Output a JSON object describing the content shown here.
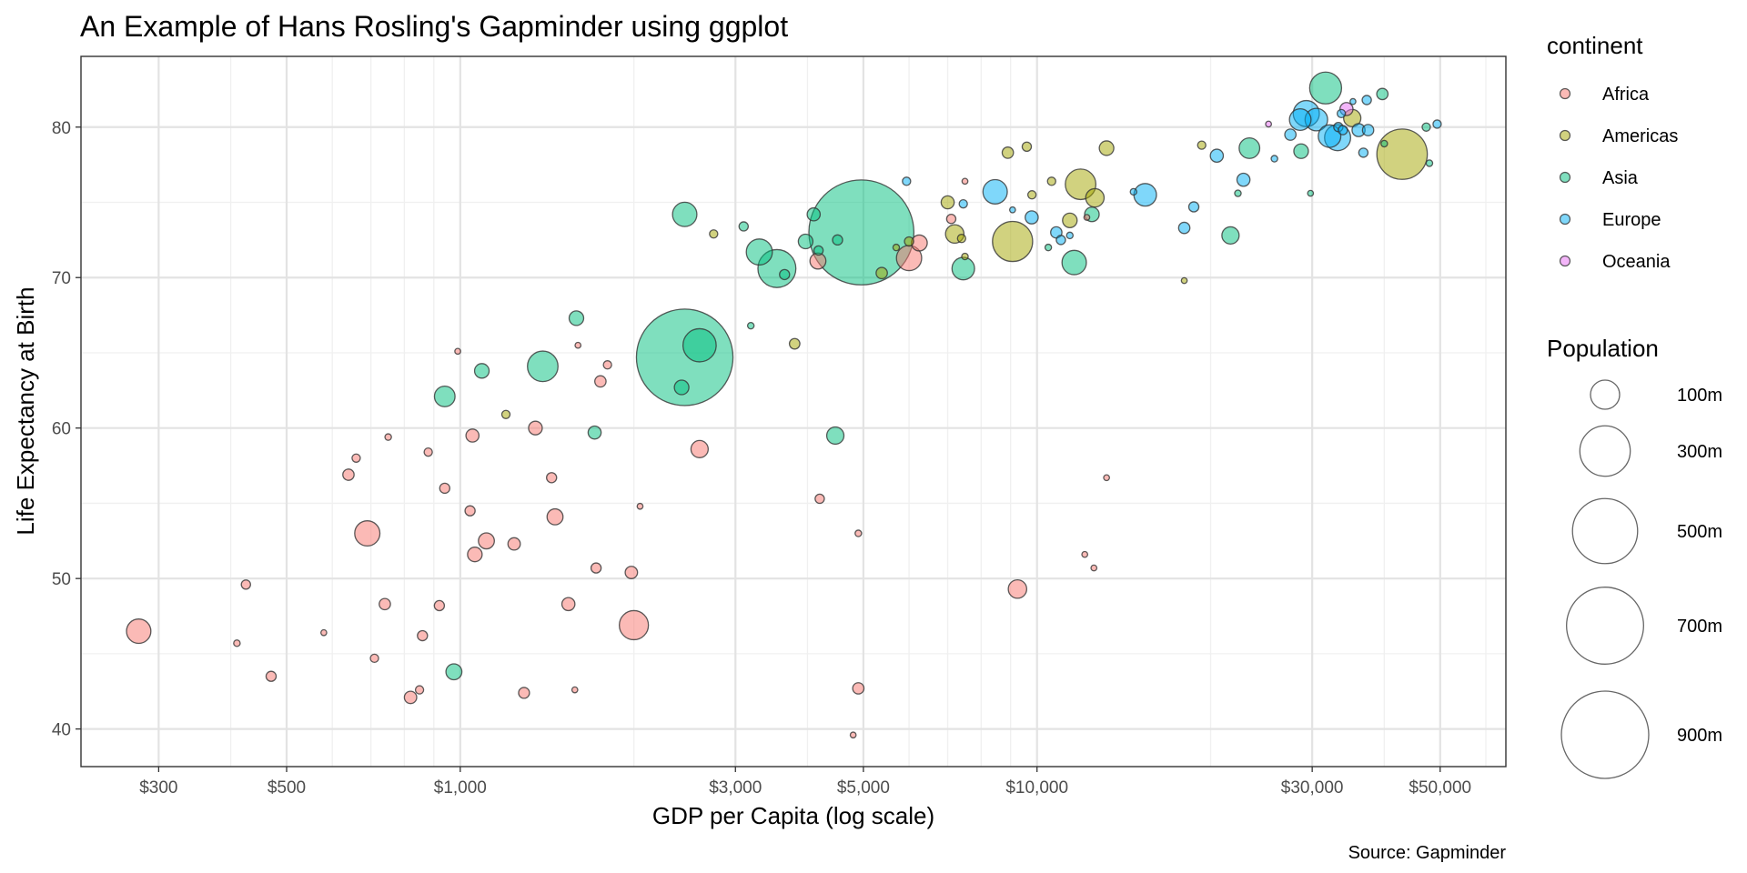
{
  "chart_data": {
    "type": "scatter",
    "title": "An Example of Hans Rosling's Gapminder using ggplot",
    "xlabel": "GDP per Capita (log scale)",
    "ylabel": "Life Expectancy at Birth",
    "caption": "Source: Gapminder",
    "x_scale": "log10",
    "xlim": [
      220,
      65000
    ],
    "ylim": [
      37.5,
      84.7
    ],
    "x_ticks": [
      300,
      500,
      1000,
      3000,
      5000,
      10000,
      30000,
      50000
    ],
    "x_tick_labels": [
      "$300",
      "$500",
      "$1,000",
      "$3,000",
      "$5,000",
      "$10,000",
      "$30,000",
      "$50,000"
    ],
    "x_minor_ticks": [
      400,
      600,
      700,
      800,
      900,
      2000,
      4000,
      6000,
      7000,
      8000,
      9000,
      20000,
      40000,
      60000
    ],
    "y_ticks": [
      40,
      50,
      60,
      70,
      80
    ],
    "y_tick_labels": [
      "40",
      "50",
      "60",
      "70",
      "80"
    ],
    "y_minor_ticks": [
      45,
      55,
      65,
      75
    ],
    "grid": true,
    "legend": {
      "color_title": "continent",
      "size_title": "Population",
      "continents": [
        {
          "name": "Africa",
          "color": "#F8766D"
        },
        {
          "name": "Americas",
          "color": "#A3A500"
        },
        {
          "name": "Asia",
          "color": "#00BF7D"
        },
        {
          "name": "Europe",
          "color": "#00B0F6"
        },
        {
          "name": "Oceania",
          "color": "#E76BF3"
        }
      ],
      "sizes": [
        {
          "label": "100m",
          "value": 100
        },
        {
          "label": "300m",
          "value": 300
        },
        {
          "label": "500m",
          "value": 500
        },
        {
          "label": "700m",
          "value": 700
        },
        {
          "label": "900m",
          "value": 900
        }
      ]
    },
    "series": [
      {
        "name": "Africa",
        "points": [
          [
            277,
            46.5,
            70
          ],
          [
            410,
            45.7,
            5
          ],
          [
            425,
            49.6,
            10
          ],
          [
            470,
            43.5,
            12
          ],
          [
            580,
            46.4,
            4
          ],
          [
            640,
            56.9,
            15
          ],
          [
            660,
            58.0,
            8
          ],
          [
            690,
            53.0,
            75
          ],
          [
            710,
            44.7,
            8
          ],
          [
            740,
            48.3,
            15
          ],
          [
            750,
            59.4,
            5
          ],
          [
            820,
            42.1,
            18
          ],
          [
            850,
            42.6,
            8
          ],
          [
            860,
            46.2,
            12
          ],
          [
            880,
            58.4,
            8
          ],
          [
            920,
            48.2,
            12
          ],
          [
            940,
            56.0,
            12
          ],
          [
            990,
            65.1,
            2
          ],
          [
            1040,
            54.5,
            12
          ],
          [
            1050,
            59.5,
            20
          ],
          [
            1060,
            51.6,
            25
          ],
          [
            1110,
            52.5,
            30
          ],
          [
            1240,
            52.3,
            18
          ],
          [
            1290,
            42.4,
            14
          ],
          [
            1350,
            60.0,
            22
          ],
          [
            1440,
            56.7,
            12
          ],
          [
            1460,
            54.1,
            30
          ],
          [
            1540,
            48.3,
            20
          ],
          [
            1580,
            42.6,
            4
          ],
          [
            1600,
            65.5,
            1
          ],
          [
            1720,
            50.7,
            12
          ],
          [
            1750,
            63.1,
            15
          ],
          [
            1800,
            64.2,
            8
          ],
          [
            1980,
            50.4,
            18
          ],
          [
            2050,
            54.8,
            2
          ],
          [
            2000,
            46.9,
            100
          ],
          [
            2600,
            58.6,
            35
          ],
          [
            4170,
            71.1,
            30
          ],
          [
            4200,
            55.3,
            10
          ],
          [
            4800,
            39.6,
            3
          ],
          [
            4900,
            53.0,
            5
          ],
          [
            4900,
            42.7,
            15
          ],
          [
            6000,
            71.3,
            75
          ],
          [
            6250,
            72.3,
            30
          ],
          [
            7100,
            73.9,
            10
          ],
          [
            7500,
            76.4,
            2
          ],
          [
            9250,
            49.3,
            40
          ],
          [
            12100,
            51.6,
            2
          ],
          [
            12200,
            74.0,
            4
          ],
          [
            12550,
            50.7,
            4
          ],
          [
            13200,
            56.7,
            4
          ]
        ]
      },
      {
        "name": "Americas",
        "points": [
          [
            1200,
            60.9,
            8
          ],
          [
            2750,
            72.9,
            8
          ],
          [
            3800,
            65.6,
            13
          ],
          [
            5380,
            70.3,
            15
          ],
          [
            5700,
            72.0,
            5
          ],
          [
            6000,
            72.4,
            10
          ],
          [
            7000,
            75.0,
            20
          ],
          [
            7200,
            72.9,
            40
          ],
          [
            7400,
            72.6,
            8
          ],
          [
            7500,
            71.4,
            5
          ],
          [
            8900,
            78.3,
            15
          ],
          [
            9070,
            72.4,
            190
          ],
          [
            9600,
            78.7,
            10
          ],
          [
            9800,
            75.5,
            8
          ],
          [
            10600,
            76.4,
            8
          ],
          [
            11400,
            73.8,
            25
          ],
          [
            11900,
            76.2,
            110
          ],
          [
            12600,
            75.3,
            40
          ],
          [
            13200,
            78.6,
            25
          ],
          [
            18000,
            69.8,
            2
          ],
          [
            19300,
            78.8,
            8
          ],
          [
            35200,
            80.6,
            35
          ],
          [
            42950,
            78.2,
            300
          ]
        ]
      },
      {
        "name": "Asia",
        "points": [
          [
            940,
            62.1,
            50
          ],
          [
            975,
            43.8,
            30
          ],
          [
            1090,
            63.8,
            25
          ],
          [
            1390,
            64.1,
            110
          ],
          [
            1590,
            67.3,
            25
          ],
          [
            1710,
            59.7,
            20
          ],
          [
            2450,
            64.7,
            1100
          ],
          [
            2420,
            62.7,
            25
          ],
          [
            2600,
            65.5,
            130
          ],
          [
            2450,
            74.2,
            70
          ],
          [
            3100,
            73.4,
            10
          ],
          [
            3190,
            66.8,
            5
          ],
          [
            3300,
            71.7,
            80
          ],
          [
            3540,
            70.6,
            170
          ],
          [
            3650,
            70.2,
            12
          ],
          [
            3970,
            72.4,
            25
          ],
          [
            4100,
            74.2,
            20
          ],
          [
            4180,
            71.8,
            10
          ],
          [
            4470,
            59.5,
            35
          ],
          [
            4510,
            72.5,
            12
          ],
          [
            4960,
            73.0,
            1300
          ],
          [
            7450,
            70.6,
            60
          ],
          [
            10460,
            72.0,
            5
          ],
          [
            11600,
            71.0,
            70
          ],
          [
            12450,
            74.2,
            25
          ],
          [
            21650,
            72.8,
            35
          ],
          [
            22300,
            75.6,
            5
          ],
          [
            23350,
            78.6,
            50
          ],
          [
            28700,
            78.4,
            25
          ],
          [
            29800,
            75.6,
            2
          ],
          [
            31650,
            82.6,
            120
          ],
          [
            40000,
            78.9,
            5
          ],
          [
            39700,
            82.2,
            15
          ],
          [
            47300,
            80.0,
            8
          ],
          [
            47900,
            77.6,
            5
          ]
        ]
      },
      {
        "name": "Europe",
        "points": [
          [
            5940,
            76.4,
            8
          ],
          [
            7450,
            74.9,
            8
          ],
          [
            8460,
            75.7,
            70
          ],
          [
            9070,
            74.5,
            2
          ],
          [
            9790,
            74.0,
            20
          ],
          [
            10800,
            73.0,
            15
          ],
          [
            11000,
            72.5,
            10
          ],
          [
            11400,
            72.8,
            5
          ],
          [
            14700,
            75.7,
            5
          ],
          [
            15400,
            75.5,
            60
          ],
          [
            18000,
            73.3,
            15
          ],
          [
            18700,
            74.7,
            12
          ],
          [
            20500,
            78.1,
            20
          ],
          [
            22800,
            76.5,
            20
          ],
          [
            25800,
            77.9,
            5
          ],
          [
            27500,
            79.5,
            15
          ],
          [
            28600,
            80.5,
            55
          ],
          [
            29300,
            80.9,
            80
          ],
          [
            30500,
            80.5,
            60
          ],
          [
            32150,
            79.4,
            60
          ],
          [
            33200,
            79.3,
            80
          ],
          [
            33300,
            80.0,
            10
          ],
          [
            33700,
            80.9,
            8
          ],
          [
            33900,
            79.8,
            10
          ],
          [
            35300,
            81.7,
            4
          ],
          [
            36100,
            79.8,
            20
          ],
          [
            36800,
            78.3,
            10
          ],
          [
            37500,
            79.8,
            15
          ],
          [
            37300,
            81.8,
            10
          ],
          [
            49400,
            80.2,
            8
          ]
        ]
      },
      {
        "name": "Oceania",
        "points": [
          [
            25200,
            80.2,
            4
          ],
          [
            34400,
            81.2,
            20
          ]
        ]
      }
    ]
  }
}
